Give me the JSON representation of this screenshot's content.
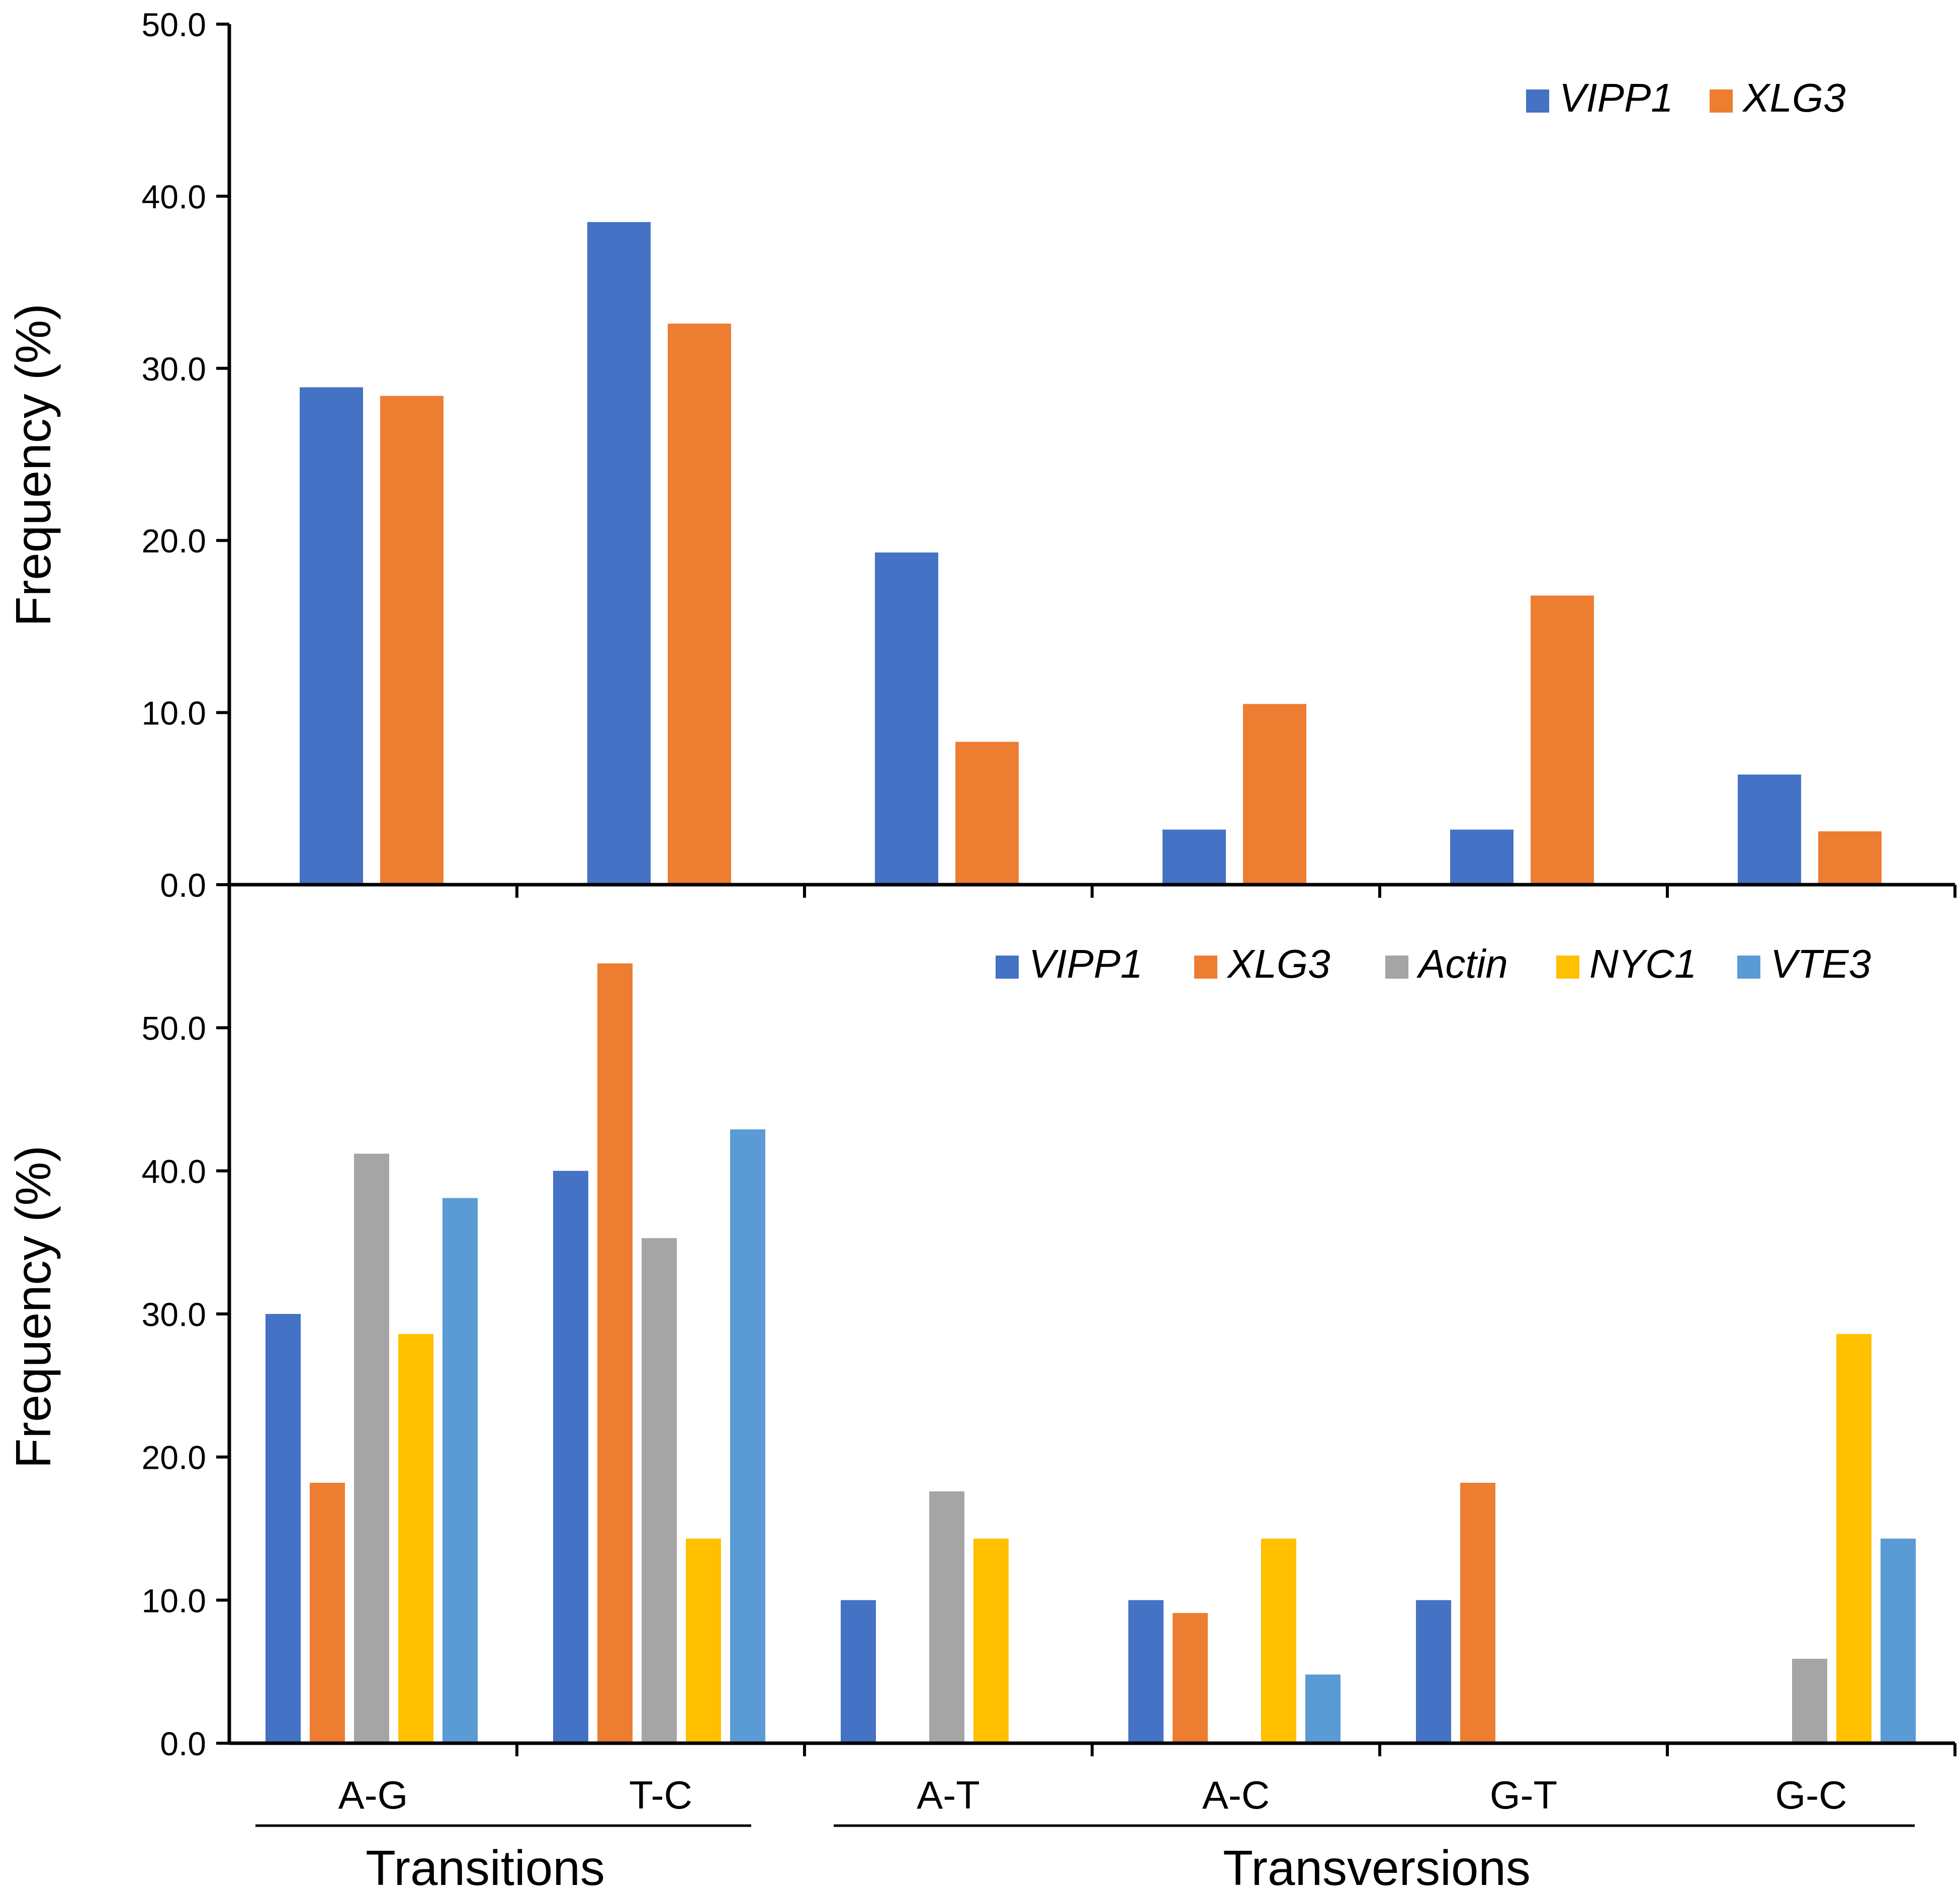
{
  "chart_data": [
    {
      "type": "bar",
      "ylabel": "Frequency (%)",
      "ylim": [
        0,
        50
      ],
      "yticks": [
        "0.0",
        "10.0",
        "20.0",
        "30.0",
        "40.0",
        "50.0"
      ],
      "categories": [
        "A-G",
        "T-C",
        "A-T",
        "A-C",
        "G-T",
        "G-C"
      ],
      "series": [
        {
          "name": "VIPP1",
          "color": "#4472C4",
          "values": [
            28.9,
            38.5,
            19.3,
            3.2,
            3.2,
            6.4
          ]
        },
        {
          "name": "XLG3",
          "color": "#ED7D31",
          "values": [
            28.4,
            32.6,
            8.3,
            10.5,
            16.8,
            3.1
          ]
        }
      ],
      "legend": "top-right"
    },
    {
      "type": "bar",
      "ylabel": "Frequency (%)",
      "ylim": [
        0,
        60
      ],
      "yticks": [
        "0.0",
        "10.0",
        "20.0",
        "30.0",
        "40.0",
        "50.0"
      ],
      "categories": [
        "A-G",
        "T-C",
        "A-T",
        "A-C",
        "G-T",
        "G-C"
      ],
      "series": [
        {
          "name": "VIPP1",
          "color": "#4472C4",
          "values": [
            30.0,
            40.0,
            10.0,
            10.0,
            10.0,
            0
          ]
        },
        {
          "name": "XLG3",
          "color": "#ED7D31",
          "values": [
            18.2,
            54.5,
            0,
            9.1,
            18.2,
            0
          ]
        },
        {
          "name": "Actin",
          "color": "#A5A5A5",
          "values": [
            41.2,
            35.3,
            17.6,
            0,
            0,
            5.9
          ]
        },
        {
          "name": "NYC1",
          "color": "#FFC000",
          "values": [
            28.6,
            14.3,
            14.3,
            14.3,
            0,
            28.6
          ]
        },
        {
          "name": "VTE3",
          "color": "#5B9BD5",
          "values": [
            38.1,
            42.9,
            0,
            4.8,
            0,
            14.3
          ]
        }
      ],
      "legend": "top-right",
      "groups": [
        {
          "label": "Transitions",
          "categories": [
            "A-G",
            "T-C"
          ]
        },
        {
          "label": "Transversions",
          "categories": [
            "A-T",
            "A-C",
            "G-T",
            "G-C"
          ]
        }
      ]
    }
  ]
}
